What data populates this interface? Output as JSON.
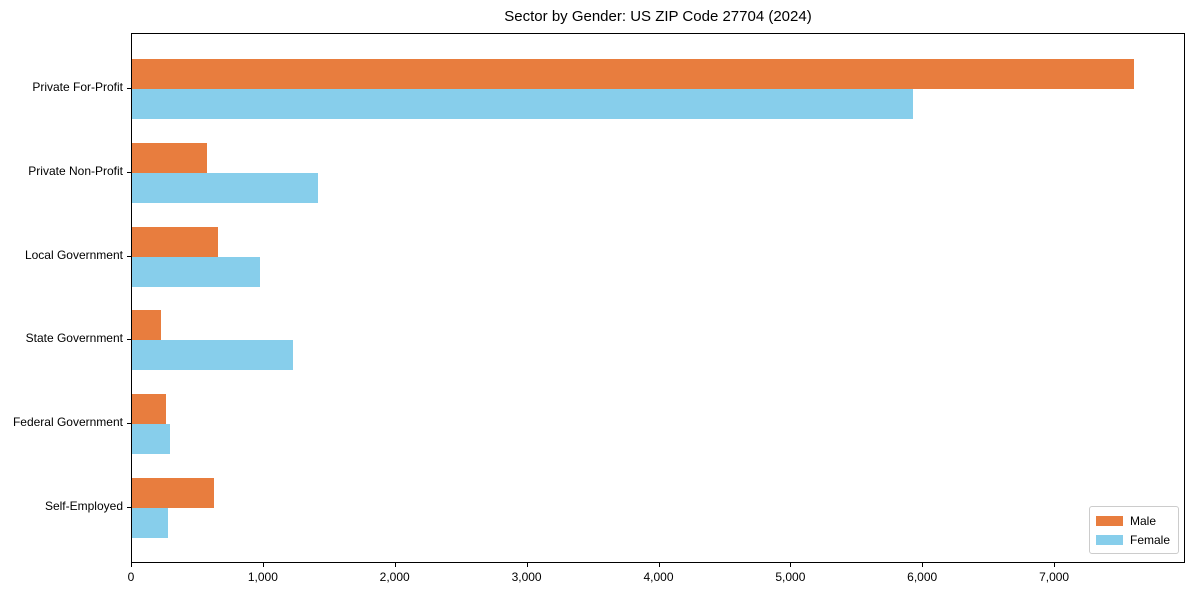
{
  "title": "Sector by Gender: US ZIP Code 27704 (2024)",
  "chart_data": {
    "type": "bar",
    "orientation": "horizontal",
    "title": "Sector by Gender: US ZIP Code 27704 (2024)",
    "xlabel": "",
    "ylabel": "",
    "categories": [
      "Private For-Profit",
      "Private Non-Profit",
      "Local Government",
      "State Government",
      "Federal Government",
      "Self-Employed"
    ],
    "series": [
      {
        "name": "Male",
        "color": "#e87d3e",
        "values": [
          7600,
          570,
          650,
          220,
          260,
          620
        ]
      },
      {
        "name": "Female",
        "color": "#87ceeb",
        "values": [
          5920,
          1410,
          970,
          1220,
          290,
          270
        ]
      }
    ],
    "xlim": [
      0,
      7985
    ],
    "x_ticks": [
      0,
      1000,
      2000,
      3000,
      4000,
      5000,
      6000,
      7000
    ],
    "x_tick_labels": [
      "0",
      "1,000",
      "2,000",
      "3,000",
      "4,000",
      "5,000",
      "6,000",
      "7,000"
    ],
    "grid": false,
    "legend_position": "lower right",
    "legend_entries": [
      "Male",
      "Female"
    ]
  }
}
